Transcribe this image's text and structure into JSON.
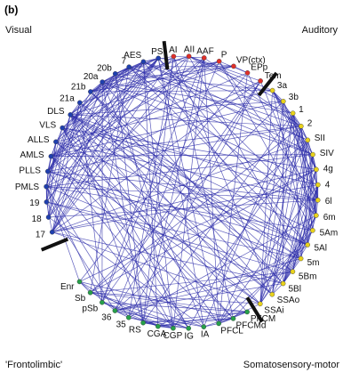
{
  "panel_label": "(b)",
  "groups": [
    {
      "id": "visual",
      "label": "Visual",
      "color": "#1f3fb0"
    },
    {
      "id": "auditory",
      "label": "Auditory",
      "color": "#e0302a"
    },
    {
      "id": "somatomotor",
      "label": "Somatosensory-motor",
      "color": "#e8d21c"
    },
    {
      "id": "frontolimbic",
      "label": "'Frontolimbic'",
      "color": "#27a04a"
    }
  ],
  "nodes": [
    {
      "label": "17",
      "group": "visual"
    },
    {
      "label": "18",
      "group": "visual"
    },
    {
      "label": "19",
      "group": "visual"
    },
    {
      "label": "PMLS",
      "group": "visual"
    },
    {
      "label": "PLLS",
      "group": "visual"
    },
    {
      "label": "AMLS",
      "group": "visual"
    },
    {
      "label": "ALLS",
      "group": "visual"
    },
    {
      "label": "VLS",
      "group": "visual"
    },
    {
      "label": "DLS",
      "group": "visual"
    },
    {
      "label": "21a",
      "group": "visual"
    },
    {
      "label": "21b",
      "group": "visual"
    },
    {
      "label": "20a",
      "group": "visual"
    },
    {
      "label": "20b",
      "group": "visual"
    },
    {
      "label": "7",
      "group": "visual"
    },
    {
      "label": "AES",
      "group": "visual"
    },
    {
      "label": "PS",
      "group": "visual"
    },
    {
      "label": "AI",
      "group": "auditory"
    },
    {
      "label": "AII",
      "group": "auditory"
    },
    {
      "label": "AAF",
      "group": "auditory"
    },
    {
      "label": "P",
      "group": "auditory"
    },
    {
      "label": "VP(ctx)",
      "group": "auditory"
    },
    {
      "label": "EPp",
      "group": "auditory"
    },
    {
      "label": "Tem",
      "group": "auditory"
    },
    {
      "label": "3a",
      "group": "somatomotor"
    },
    {
      "label": "3b",
      "group": "somatomotor"
    },
    {
      "label": "1",
      "group": "somatomotor"
    },
    {
      "label": "2",
      "group": "somatomotor"
    },
    {
      "label": "SII",
      "group": "somatomotor"
    },
    {
      "label": "SIV",
      "group": "somatomotor"
    },
    {
      "label": "4g",
      "group": "somatomotor"
    },
    {
      "label": "4",
      "group": "somatomotor"
    },
    {
      "label": "6l",
      "group": "somatomotor"
    },
    {
      "label": "6m",
      "group": "somatomotor"
    },
    {
      "label": "5Am",
      "group": "somatomotor"
    },
    {
      "label": "5Al",
      "group": "somatomotor"
    },
    {
      "label": "5m",
      "group": "somatomotor"
    },
    {
      "label": "5Bm",
      "group": "somatomotor"
    },
    {
      "label": "5Bl",
      "group": "somatomotor"
    },
    {
      "label": "SSAo",
      "group": "somatomotor"
    },
    {
      "label": "SSAi",
      "group": "somatomotor"
    },
    {
      "label": "PFCM",
      "group": "frontolimbic"
    },
    {
      "label": "PFCMd",
      "group": "frontolimbic"
    },
    {
      "label": "PFCL",
      "group": "frontolimbic"
    },
    {
      "label": "IA",
      "group": "frontolimbic"
    },
    {
      "label": "IG",
      "group": "frontolimbic"
    },
    {
      "label": "CGP",
      "group": "frontolimbic"
    },
    {
      "label": "CGA",
      "group": "frontolimbic"
    },
    {
      "label": "RS",
      "group": "frontolimbic"
    },
    {
      "label": "35",
      "group": "frontolimbic"
    },
    {
      "label": "36",
      "group": "frontolimbic"
    },
    {
      "label": "pSb",
      "group": "frontolimbic"
    },
    {
      "label": "Sb",
      "group": "frontolimbic"
    },
    {
      "label": "Enr",
      "group": "frontolimbic"
    }
  ]
}
